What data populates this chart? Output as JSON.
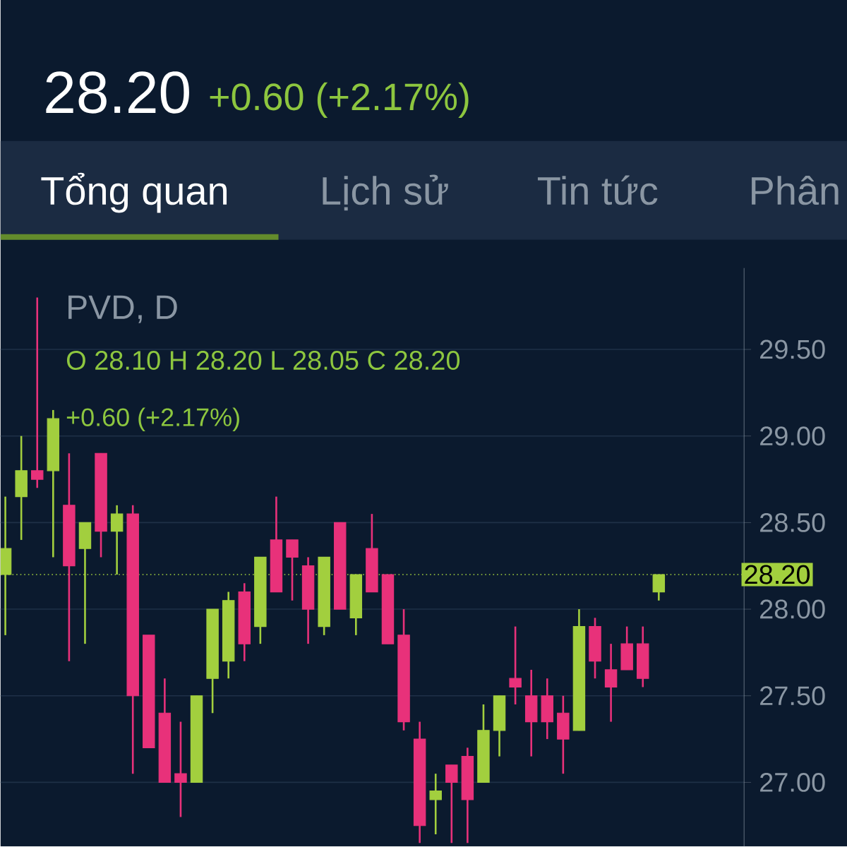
{
  "chart_data": {
    "type": "candlestick",
    "title": "28.20",
    "subtitle": "+0.60 (+2.17%)",
    "annotations": [
      "Tổng quan",
      "Lịch sử",
      "Tin tức",
      "Phân",
      "PVD, D",
      "O 28.10 H 28.20 L 28.05 C 28.20",
      "+0.60 (+2.17%)"
    ],
    "categories": [
      null,
      null,
      null,
      null,
      null,
      null,
      null,
      null,
      null,
      null,
      null,
      null,
      null,
      null,
      null,
      null,
      null,
      null,
      null,
      null,
      null,
      null,
      null,
      null,
      null,
      null,
      null,
      null,
      null,
      null,
      null,
      null,
      null,
      null,
      null,
      null,
      null,
      null,
      null,
      null,
      null,
      null
    ],
    "ohlc": [
      [
        28.2,
        28.65,
        27.85,
        28.35
      ],
      [
        28.65,
        29.0,
        28.4,
        28.8
      ],
      [
        28.8,
        29.8,
        28.7,
        28.75
      ],
      [
        28.8,
        29.15,
        28.3,
        29.1
      ],
      [
        28.6,
        28.9,
        27.7,
        28.25
      ],
      [
        28.35,
        28.5,
        27.8,
        28.5
      ],
      [
        28.9,
        28.9,
        28.3,
        28.45
      ],
      [
        28.45,
        28.6,
        28.2,
        28.55
      ],
      [
        28.55,
        28.6,
        27.05,
        27.5
      ],
      [
        27.85,
        27.85,
        27.2,
        27.2
      ],
      [
        27.4,
        27.6,
        27.0,
        27.0
      ],
      [
        27.05,
        27.35,
        26.8,
        27.0
      ],
      [
        27.0,
        27.5,
        27.0,
        27.5
      ],
      [
        27.6,
        28.0,
        27.4,
        28.0
      ],
      [
        27.7,
        28.1,
        27.6,
        28.05
      ],
      [
        28.1,
        28.15,
        27.7,
        27.8
      ],
      [
        27.9,
        28.3,
        27.8,
        28.3
      ],
      [
        28.4,
        28.65,
        28.1,
        28.1
      ],
      [
        28.4,
        28.4,
        28.05,
        28.3
      ],
      [
        28.25,
        28.3,
        27.8,
        28.0
      ],
      [
        27.9,
        28.3,
        27.85,
        28.3
      ],
      [
        28.5,
        28.5,
        28.0,
        28.0
      ],
      [
        27.95,
        28.2,
        27.85,
        28.2
      ],
      [
        28.35,
        28.55,
        28.1,
        28.1
      ],
      [
        28.2,
        28.2,
        27.8,
        27.8
      ],
      [
        27.85,
        28.0,
        27.3,
        27.35
      ],
      [
        27.25,
        27.35,
        26.65,
        26.75
      ],
      [
        26.9,
        27.05,
        26.7,
        26.95
      ],
      [
        27.1,
        27.1,
        26.65,
        27.0
      ],
      [
        27.15,
        27.2,
        26.65,
        26.9
      ],
      [
        27.0,
        27.45,
        27.0,
        27.3
      ],
      [
        27.3,
        27.5,
        27.15,
        27.5
      ],
      [
        27.6,
        27.9,
        27.45,
        27.55
      ],
      [
        27.5,
        27.65,
        27.15,
        27.35
      ],
      [
        27.5,
        27.6,
        27.25,
        27.35
      ],
      [
        27.4,
        27.5,
        27.05,
        27.25
      ],
      [
        27.3,
        28.0,
        27.3,
        27.9
      ],
      [
        27.9,
        27.95,
        27.6,
        27.7
      ],
      [
        27.65,
        27.8,
        27.35,
        27.55
      ],
      [
        27.8,
        27.9,
        27.65,
        27.65
      ],
      [
        27.8,
        27.9,
        27.55,
        27.6
      ],
      [
        28.1,
        28.2,
        28.05,
        28.2
      ]
    ],
    "colors": [
      "#a2cf3e",
      "#a2cf3e",
      "#e8317a",
      "#a2cf3e",
      "#e8317a",
      "#a2cf3e",
      "#e8317a",
      "#a2cf3e",
      "#e8317a",
      "#e8317a",
      "#e8317a",
      "#e8317a",
      "#a2cf3e",
      "#a2cf3e",
      "#a2cf3e",
      "#e8317a",
      "#a2cf3e",
      "#e8317a",
      "#e8317a",
      "#e8317a",
      "#a2cf3e",
      "#e8317a",
      "#a2cf3e",
      "#e8317a",
      "#e8317a",
      "#e8317a",
      "#e8317a",
      "#a2cf3e",
      "#e8317a",
      "#e8317a",
      "#a2cf3e",
      "#a2cf3e",
      "#e8317a",
      "#e8317a",
      "#e8317a",
      "#e8317a",
      "#a2cf3e",
      "#e8317a",
      "#e8317a",
      "#e8317a",
      "#e8317a",
      "#a2cf3e"
    ],
    "ylim": [
      26.63,
      29.97
    ],
    "yticks": [
      {
        "value": 27,
        "label": "27.00"
      },
      {
        "value": 27.5,
        "label": "27.50"
      },
      {
        "value": 28,
        "label": "28.00"
      },
      {
        "value": 28.5,
        "label": "28.50"
      },
      {
        "value": 29,
        "label": "29.00"
      },
      {
        "value": 29.5,
        "label": "29.50"
      }
    ],
    "ref_lines": [
      {
        "axis": "y",
        "value": 28.2,
        "label": "28.20",
        "color": "#a2cf3e",
        "line_style": "dotted"
      }
    ],
    "grid": "y",
    "tick_labels": "y"
  }
}
